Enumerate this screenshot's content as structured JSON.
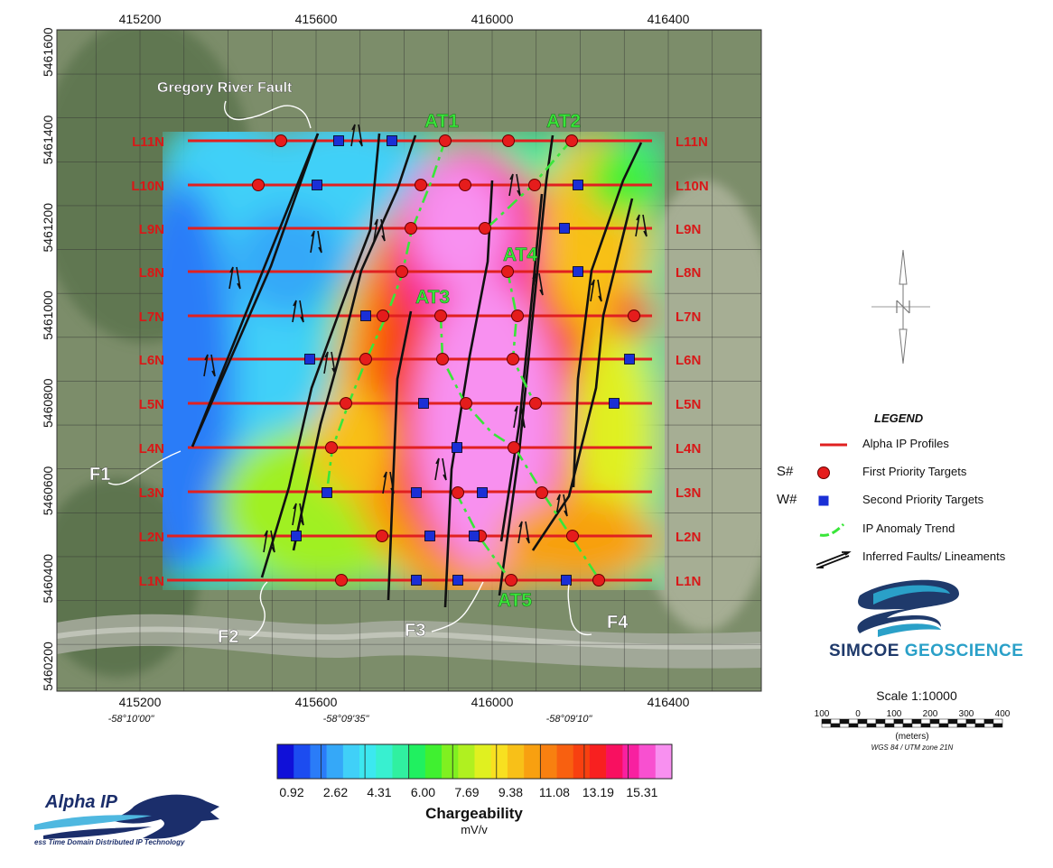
{
  "map": {
    "x_ticks": [
      "415200",
      "415600",
      "416000",
      "416400"
    ],
    "y_ticks": [
      "5461600",
      "5461400",
      "5461200",
      "5461000",
      "5460800",
      "5460600",
      "5460400",
      "5460200"
    ],
    "longitude_ticks": [
      "-58°10'00\"",
      "-58°09'35\"",
      "-58°09'10\""
    ],
    "line_labels": [
      "L11N",
      "L10N",
      "L9N",
      "L8N",
      "L7N",
      "L6N",
      "L5N",
      "L4N",
      "L3N",
      "L2N",
      "L1N"
    ],
    "fault_labels": {
      "gregory": "Gregory River Fault",
      "f1": "F1",
      "f2": "F2",
      "f3": "F3",
      "f4": "F4"
    },
    "anomaly_labels": [
      "AT1",
      "AT2",
      "AT3",
      "AT4",
      "AT5"
    ],
    "colors": {
      "profile_line": "#e02020",
      "first_target": "#e51c1c",
      "second_target": "#1a2fd6",
      "trend": "#39e639",
      "fault": "#111111",
      "line_label": "#d81818",
      "anomaly_label": "#39e639"
    }
  },
  "legend": {
    "title": "LEGEND",
    "items": [
      {
        "code": "",
        "label": "Alpha IP Profiles",
        "symbol": "red-line"
      },
      {
        "code": "S#",
        "label": "First Priority Targets",
        "symbol": "red-circle"
      },
      {
        "code": "W#",
        "label": "Second Priority Targets",
        "symbol": "blue-square"
      },
      {
        "code": "",
        "label": "IP Anomaly Trend",
        "symbol": "green-dash"
      },
      {
        "code": "",
        "label": "Inferred Faults/ Lineaments",
        "symbol": "fault-arrows"
      }
    ]
  },
  "company": {
    "name_part1": "SIMCOE",
    "name_part2": " GEOSCIENCE"
  },
  "scale": {
    "title": "Scale 1:10000",
    "ticks": [
      "100",
      "0",
      "100",
      "200",
      "300",
      "400"
    ],
    "unit": "(meters)",
    "projection": "WGS 84 / UTM zone 21N"
  },
  "colorbar": {
    "tick_labels": [
      "0.92",
      "2.62",
      "4.31",
      "6.00",
      "7.69",
      "9.38",
      "11.08",
      "13.19",
      "15.31"
    ],
    "title": "Chargeability",
    "unit": "mV/v",
    "colors": [
      "#1010d8",
      "#1c4cf0",
      "#2a7cf8",
      "#35a8f8",
      "#40d0f8",
      "#3ce8f0",
      "#38f0d0",
      "#30f0a0",
      "#20f060",
      "#40f030",
      "#80f020",
      "#b0f020",
      "#e0f020",
      "#f8e020",
      "#f8c018",
      "#f8a010",
      "#f88010",
      "#f86010",
      "#f84010",
      "#f82020",
      "#f81060",
      "#f820a0",
      "#f850d0",
      "#f890f0"
    ]
  },
  "alpha": {
    "brand": "Alpha IP",
    "tagline": "ess Time Domain Distributed IP Technology"
  }
}
